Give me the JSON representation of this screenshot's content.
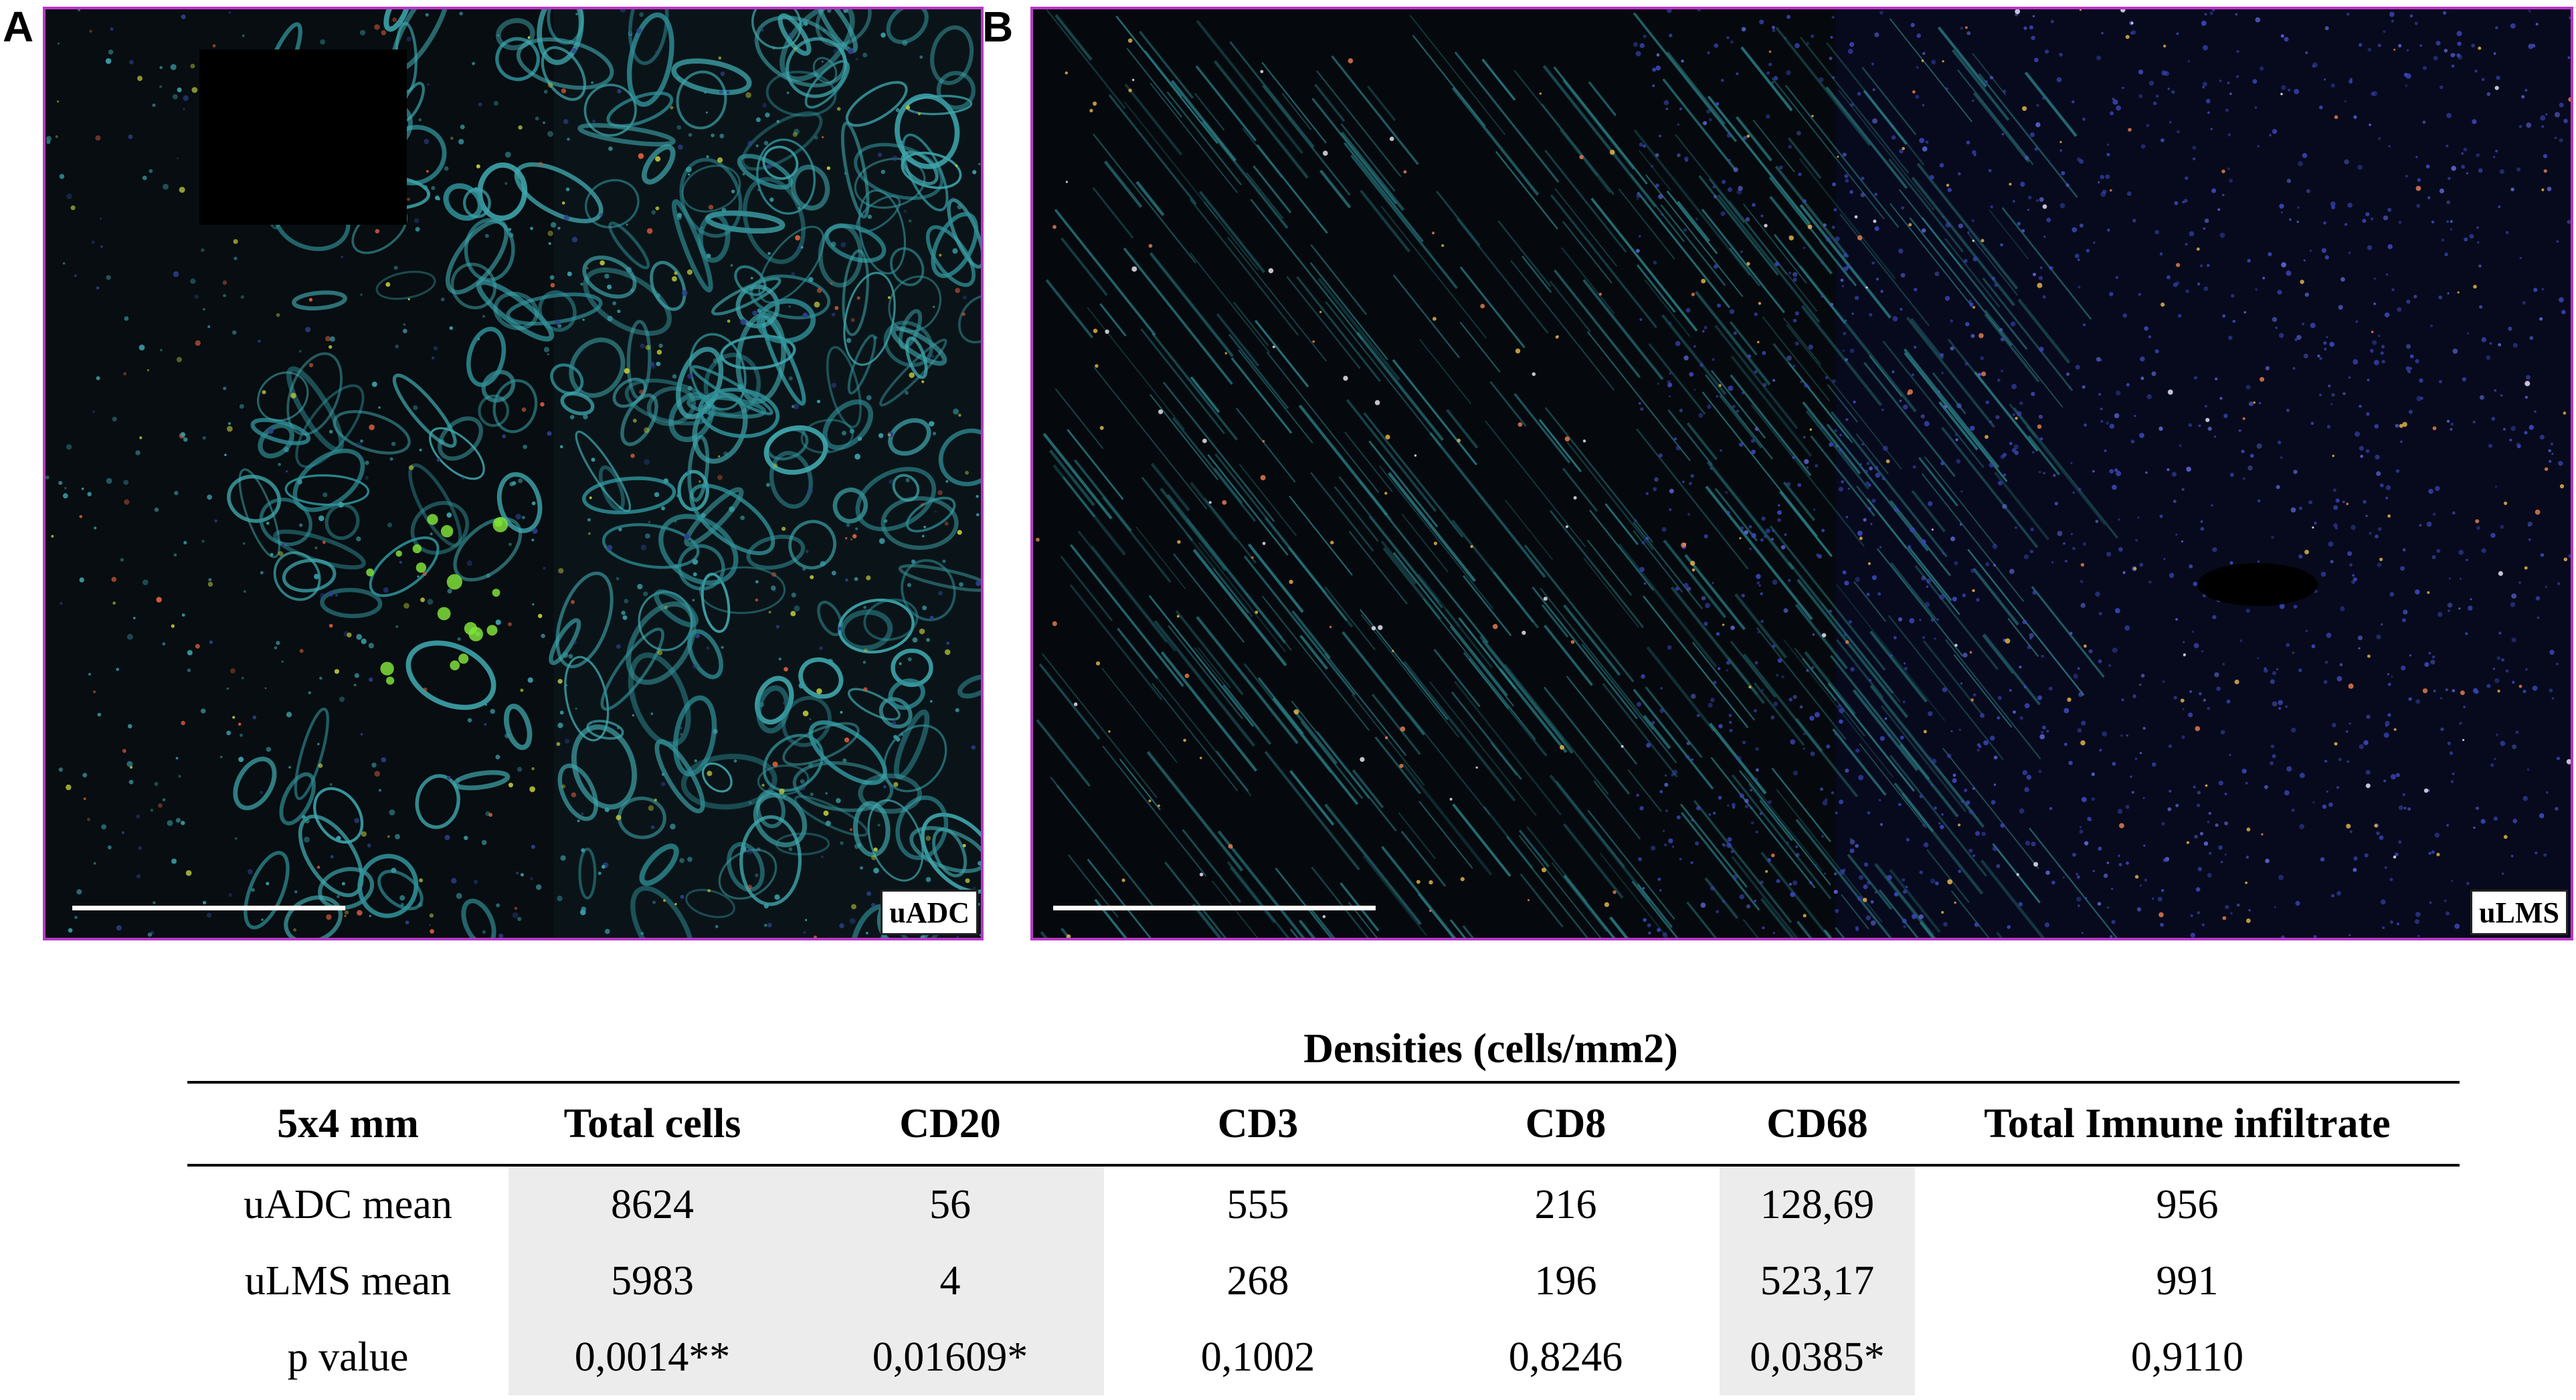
{
  "figure": {
    "panel_a": {
      "letter": "A",
      "tag": "uADC"
    },
    "panel_b": {
      "letter": "B",
      "tag": "uLMS"
    }
  },
  "table": {
    "caption": "Densities (cells/mm2)",
    "headers": [
      "5x4 mm",
      "Total cells",
      "CD20",
      "CD3",
      "CD8",
      "CD68",
      "Total Imnune infiltrate"
    ],
    "rows": [
      [
        "uADC mean",
        "8624",
        "56",
        "555",
        "216",
        "128,69",
        "956"
      ],
      [
        "uLMS mean",
        "5983",
        "4",
        "268",
        "196",
        "523,17",
        "991"
      ],
      [
        "p value",
        "0,0014**",
        "0,01609*",
        "0,1002",
        "0,8246",
        "0,0385*",
        "0,9110"
      ]
    ],
    "shaded_columns": [
      "Total cells",
      "CD20",
      "CD68"
    ],
    "shade_color": "#ececec"
  }
}
